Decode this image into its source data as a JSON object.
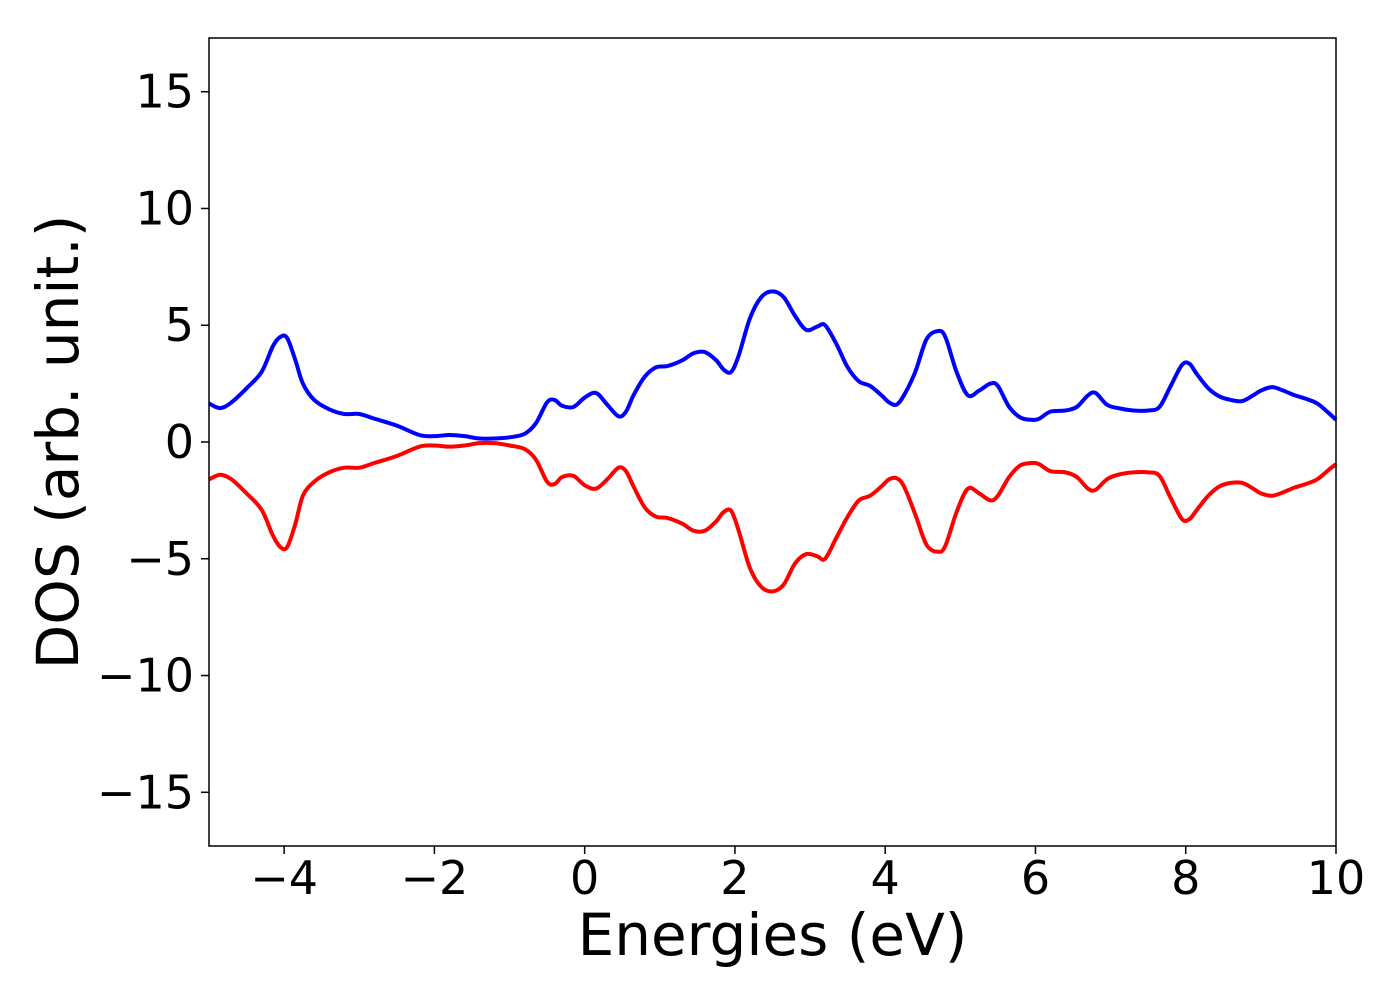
{
  "chart_data": {
    "type": "line",
    "title": "",
    "xlabel": "Energies (eV)",
    "ylabel": "DOS (arb. unit.)",
    "xlim": [
      -5,
      10
    ],
    "ylim": [
      -17.3,
      17.3
    ],
    "xticks": [
      -4,
      -2,
      0,
      2,
      4,
      6,
      8,
      10
    ],
    "yticks": [
      15,
      10,
      5,
      0,
      -5,
      -10,
      -15
    ],
    "xtick_labels": [
      "−4",
      "−2",
      "0",
      "2",
      "4",
      "6",
      "8",
      "10"
    ],
    "ytick_labels": [
      "15",
      "10",
      "5",
      "0",
      "−5",
      "−10",
      "−15"
    ],
    "grid": false,
    "legend": "none",
    "series": [
      {
        "color": "#0000ff",
        "x": [
          -5.0,
          -4.85,
          -4.7,
          -4.5,
          -4.3,
          -4.15,
          -4.05,
          -3.96,
          -3.85,
          -3.75,
          -3.6,
          -3.4,
          -3.2,
          -3.0,
          -2.8,
          -2.5,
          -2.2,
          -2.0,
          -1.8,
          -1.6,
          -1.4,
          -1.2,
          -1.0,
          -0.8,
          -0.65,
          -0.5,
          -0.4,
          -0.3,
          -0.15,
          0.0,
          0.15,
          0.3,
          0.45,
          0.55,
          0.65,
          0.8,
          0.95,
          1.1,
          1.3,
          1.45,
          1.6,
          1.75,
          1.85,
          1.95,
          2.05,
          2.2,
          2.35,
          2.5,
          2.65,
          2.8,
          2.95,
          3.1,
          3.2,
          3.35,
          3.5,
          3.65,
          3.8,
          3.95,
          4.05,
          4.15,
          4.25,
          4.4,
          4.55,
          4.7,
          4.8,
          4.95,
          5.1,
          5.25,
          5.4,
          5.5,
          5.65,
          5.8,
          5.95,
          6.05,
          6.2,
          6.4,
          6.55,
          6.7,
          6.8,
          6.95,
          7.1,
          7.3,
          7.5,
          7.65,
          7.8,
          7.95,
          8.05,
          8.15,
          8.3,
          8.45,
          8.6,
          8.75,
          8.9,
          9.0,
          9.15,
          9.3,
          9.45,
          9.6,
          9.75,
          9.9,
          10.0
        ],
        "y": [
          1.65,
          1.45,
          1.7,
          2.3,
          3.0,
          4.1,
          4.5,
          4.45,
          3.5,
          2.5,
          1.8,
          1.4,
          1.2,
          1.2,
          1.0,
          0.7,
          0.3,
          0.25,
          0.3,
          0.25,
          0.15,
          0.15,
          0.2,
          0.35,
          0.8,
          1.7,
          1.8,
          1.55,
          1.5,
          1.9,
          2.1,
          1.6,
          1.1,
          1.3,
          2.0,
          2.8,
          3.2,
          3.25,
          3.5,
          3.8,
          3.85,
          3.5,
          3.1,
          3.0,
          3.7,
          5.3,
          6.2,
          6.45,
          6.2,
          5.4,
          4.8,
          4.95,
          5.0,
          4.2,
          3.2,
          2.6,
          2.4,
          2.0,
          1.7,
          1.6,
          2.0,
          3.0,
          4.4,
          4.75,
          4.5,
          3.0,
          2.0,
          2.2,
          2.5,
          2.4,
          1.5,
          1.05,
          0.95,
          1.0,
          1.3,
          1.35,
          1.5,
          2.0,
          2.1,
          1.6,
          1.45,
          1.35,
          1.35,
          1.5,
          2.4,
          3.3,
          3.35,
          2.9,
          2.3,
          1.95,
          1.8,
          1.75,
          2.0,
          2.2,
          2.35,
          2.2,
          2.0,
          1.85,
          1.65,
          1.25,
          0.95
        ]
      },
      {
        "color": "#ff0000",
        "x": [
          -5.0,
          -4.85,
          -4.7,
          -4.5,
          -4.3,
          -4.15,
          -4.05,
          -3.96,
          -3.85,
          -3.75,
          -3.6,
          -3.4,
          -3.2,
          -3.0,
          -2.8,
          -2.5,
          -2.2,
          -2.0,
          -1.8,
          -1.6,
          -1.4,
          -1.2,
          -1.0,
          -0.8,
          -0.65,
          -0.5,
          -0.4,
          -0.3,
          -0.15,
          0.0,
          0.15,
          0.3,
          0.45,
          0.55,
          0.65,
          0.8,
          0.95,
          1.1,
          1.3,
          1.45,
          1.6,
          1.75,
          1.85,
          1.95,
          2.05,
          2.2,
          2.35,
          2.5,
          2.65,
          2.8,
          2.95,
          3.1,
          3.2,
          3.35,
          3.5,
          3.65,
          3.8,
          3.95,
          4.05,
          4.15,
          4.25,
          4.4,
          4.55,
          4.7,
          4.8,
          4.95,
          5.1,
          5.25,
          5.4,
          5.5,
          5.65,
          5.8,
          5.95,
          6.05,
          6.2,
          6.4,
          6.55,
          6.7,
          6.8,
          6.95,
          7.1,
          7.3,
          7.5,
          7.65,
          7.8,
          7.95,
          8.05,
          8.15,
          8.3,
          8.45,
          8.6,
          8.75,
          8.9,
          9.0,
          9.15,
          9.3,
          9.45,
          9.6,
          9.75,
          9.9,
          10.0
        ],
        "y": [
          -1.6,
          -1.4,
          -1.6,
          -2.2,
          -2.9,
          -4.0,
          -4.5,
          -4.5,
          -3.5,
          -2.3,
          -1.7,
          -1.3,
          -1.1,
          -1.1,
          -0.9,
          -0.6,
          -0.2,
          -0.15,
          -0.2,
          -0.15,
          -0.05,
          -0.05,
          -0.15,
          -0.3,
          -0.75,
          -1.7,
          -1.8,
          -1.5,
          -1.45,
          -1.85,
          -2.0,
          -1.6,
          -1.1,
          -1.25,
          -1.9,
          -2.8,
          -3.2,
          -3.25,
          -3.5,
          -3.8,
          -3.8,
          -3.4,
          -3.0,
          -2.95,
          -3.8,
          -5.4,
          -6.2,
          -6.4,
          -6.1,
          -5.2,
          -4.8,
          -4.9,
          -5.0,
          -4.1,
          -3.2,
          -2.5,
          -2.3,
          -1.9,
          -1.6,
          -1.55,
          -1.9,
          -3.1,
          -4.4,
          -4.7,
          -4.45,
          -3.0,
          -2.0,
          -2.2,
          -2.5,
          -2.3,
          -1.5,
          -1.0,
          -0.9,
          -0.95,
          -1.25,
          -1.3,
          -1.5,
          -2.0,
          -2.05,
          -1.6,
          -1.4,
          -1.3,
          -1.3,
          -1.45,
          -2.4,
          -3.3,
          -3.3,
          -2.9,
          -2.3,
          -1.9,
          -1.75,
          -1.75,
          -2.0,
          -2.2,
          -2.3,
          -2.15,
          -1.95,
          -1.8,
          -1.6,
          -1.2,
          -0.95
        ]
      }
    ]
  }
}
